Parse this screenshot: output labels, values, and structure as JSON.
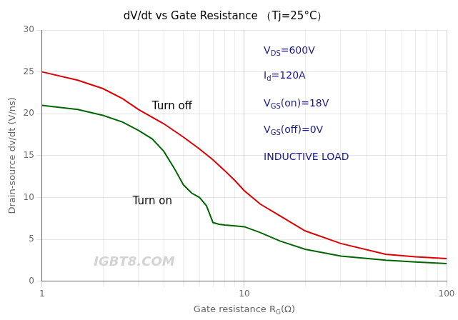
{
  "chart_data": {
    "type": "line",
    "title": "dV/dt vs Gate Resistance （Tj=25°C）",
    "xlabel": [
      "Gate resistance R",
      "G",
      "(Ω)"
    ],
    "ylabel": "Drain-source dv/dt (V/ns)",
    "log": "x",
    "grid": true,
    "xlim": [
      1,
      100
    ],
    "xticks": [
      1,
      10,
      100
    ],
    "ylim": [
      0,
      30
    ],
    "yticks": [
      0,
      5,
      10,
      15,
      20,
      25,
      30
    ],
    "series": [
      {
        "name": "Turn off",
        "color": "#dd0000",
        "x": [
          1,
          1.5,
          2,
          2.5,
          3,
          4,
          5,
          6,
          7,
          8,
          9,
          10,
          12,
          15,
          20,
          30,
          50,
          70,
          100
        ],
        "values": [
          25,
          24.0,
          23.0,
          21.8,
          20.5,
          18.8,
          17.2,
          15.8,
          14.5,
          13.2,
          12.0,
          10.8,
          9.2,
          7.8,
          6.0,
          4.5,
          3.2,
          2.9,
          2.7
        ]
      },
      {
        "name": "Turn on",
        "color": "#006600",
        "x": [
          1,
          1.5,
          2,
          2.5,
          3,
          3.5,
          4,
          4.5,
          5,
          5.5,
          6,
          6.5,
          7,
          7.5,
          8,
          9,
          10,
          12,
          15,
          20,
          30,
          50,
          70,
          100
        ],
        "values": [
          21,
          20.5,
          19.8,
          19.0,
          18.0,
          17.0,
          15.5,
          13.5,
          11.5,
          10.5,
          10.0,
          9.0,
          7.0,
          6.8,
          6.7,
          6.6,
          6.5,
          5.8,
          4.8,
          3.8,
          3.0,
          2.5,
          2.3,
          2.1
        ]
      }
    ],
    "annotations": [
      {
        "text": [
          "V",
          "DS",
          "=600V"
        ],
        "color": "#1a1a8c"
      },
      {
        "text": [
          "I",
          "d",
          "=120A"
        ],
        "color": "#1a1a8c"
      },
      {
        "text": [
          "V",
          "GS",
          "(on)=18V"
        ],
        "color": "#1a1a8c"
      },
      {
        "text": [
          "V",
          "GS",
          "(off)=0V"
        ],
        "color": "#1a1a8c"
      },
      {
        "text": [
          "INDUCTIVE LOAD"
        ],
        "color": "#1a1a8c"
      },
      {
        "text": [
          "IGBT8.COM"
        ],
        "color": "#cccccc"
      }
    ]
  }
}
